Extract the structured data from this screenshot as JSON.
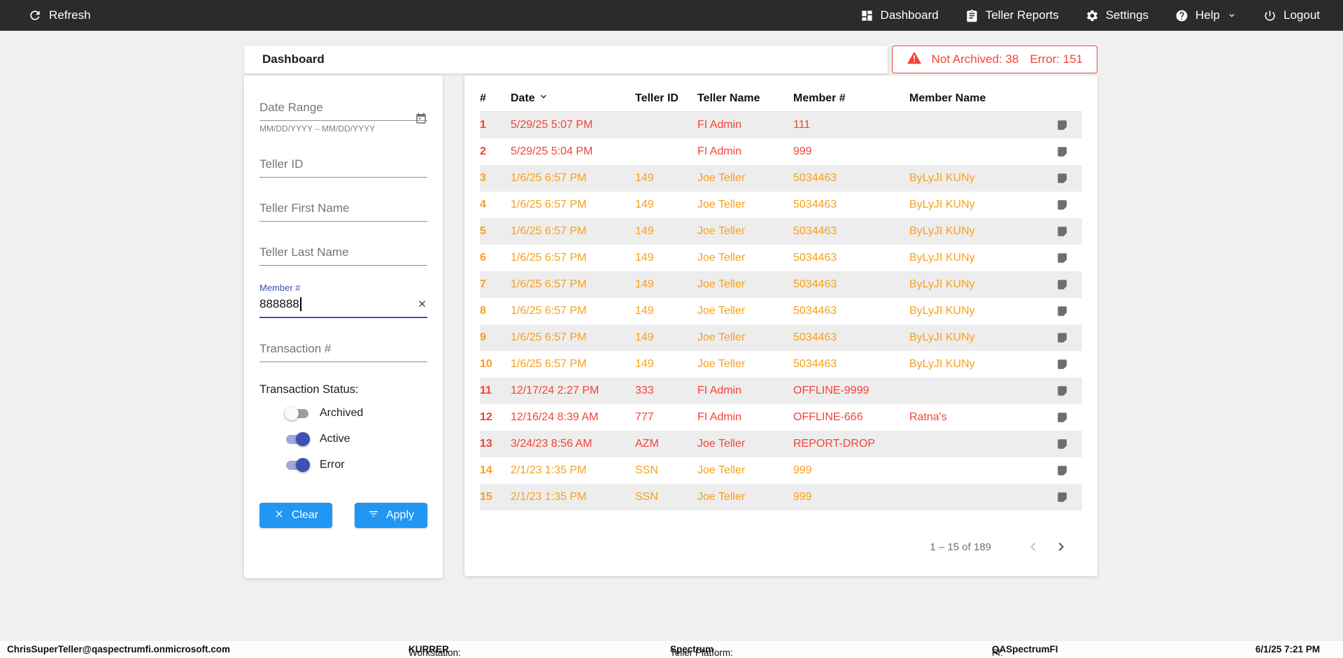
{
  "topbar": {
    "refresh_label": "Refresh",
    "nav": [
      {
        "label": "Dashboard"
      },
      {
        "label": "Teller Reports"
      },
      {
        "label": "Settings"
      },
      {
        "label": "Help"
      },
      {
        "label": "Logout"
      }
    ]
  },
  "page_header": {
    "title": "Dashboard",
    "alert": {
      "not_archived": "Not Archived: 38",
      "error": "Error: 151"
    }
  },
  "filters": {
    "date_range": {
      "placeholder": "Date Range",
      "hint": "MM/DD/YYYY – MM/DD/YYYY"
    },
    "teller_id": {
      "placeholder": "Teller ID"
    },
    "teller_first_name": {
      "placeholder": "Teller First Name"
    },
    "teller_last_name": {
      "placeholder": "Teller Last Name"
    },
    "member_number": {
      "label": "Member #",
      "value": "888888"
    },
    "transaction_number": {
      "placeholder": "Transaction #"
    },
    "transaction_status": {
      "label": "Transaction Status:",
      "options": [
        {
          "label": "Archived",
          "on": false
        },
        {
          "label": "Active",
          "on": true
        },
        {
          "label": "Error",
          "on": true
        }
      ]
    },
    "clear_label": "Clear",
    "apply_label": "Apply"
  },
  "table": {
    "columns": [
      "#",
      "Date",
      "Teller ID",
      "Teller Name",
      "Member #",
      "Member Name"
    ],
    "sorted_column": "Date",
    "sort_direction": "desc",
    "rows": [
      {
        "num": "1",
        "date": "5/29/25 5:07 PM",
        "teller_id": "",
        "teller_name": "FI Admin",
        "member_number": "111",
        "member_name": "",
        "status": "error"
      },
      {
        "num": "2",
        "date": "5/29/25 5:04 PM",
        "teller_id": "",
        "teller_name": "FI Admin",
        "member_number": "999",
        "member_name": "",
        "status": "error"
      },
      {
        "num": "3",
        "date": "1/6/25 6:57 PM",
        "teller_id": "149",
        "teller_name": "Joe Teller",
        "member_number": "5034463",
        "member_name": "ByLyJI KUNy",
        "status": "warning"
      },
      {
        "num": "4",
        "date": "1/6/25 6:57 PM",
        "teller_id": "149",
        "teller_name": "Joe Teller",
        "member_number": "5034463",
        "member_name": "ByLyJI KUNy",
        "status": "warning"
      },
      {
        "num": "5",
        "date": "1/6/25 6:57 PM",
        "teller_id": "149",
        "teller_name": "Joe Teller",
        "member_number": "5034463",
        "member_name": "ByLyJI KUNy",
        "status": "warning"
      },
      {
        "num": "6",
        "date": "1/6/25 6:57 PM",
        "teller_id": "149",
        "teller_name": "Joe Teller",
        "member_number": "5034463",
        "member_name": "ByLyJI KUNy",
        "status": "warning"
      },
      {
        "num": "7",
        "date": "1/6/25 6:57 PM",
        "teller_id": "149",
        "teller_name": "Joe Teller",
        "member_number": "5034463",
        "member_name": "ByLyJI KUNy",
        "status": "warning"
      },
      {
        "num": "8",
        "date": "1/6/25 6:57 PM",
        "teller_id": "149",
        "teller_name": "Joe Teller",
        "member_number": "5034463",
        "member_name": "ByLyJI KUNy",
        "status": "warning"
      },
      {
        "num": "9",
        "date": "1/6/25 6:57 PM",
        "teller_id": "149",
        "teller_name": "Joe Teller",
        "member_number": "5034463",
        "member_name": "ByLyJI KUNy",
        "status": "warning"
      },
      {
        "num": "10",
        "date": "1/6/25 6:57 PM",
        "teller_id": "149",
        "teller_name": "Joe Teller",
        "member_number": "5034463",
        "member_name": "ByLyJI KUNy",
        "status": "warning"
      },
      {
        "num": "11",
        "date": "12/17/24 2:27 PM",
        "teller_id": "333",
        "teller_name": "FI Admin",
        "member_number": "OFFLINE-9999",
        "member_name": "",
        "status": "error"
      },
      {
        "num": "12",
        "date": "12/16/24 8:39 AM",
        "teller_id": "777",
        "teller_name": "FI Admin",
        "member_number": "OFFLINE-666",
        "member_name": "Ratna's",
        "status": "error"
      },
      {
        "num": "13",
        "date": "3/24/23 8:56 AM",
        "teller_id": "AZM",
        "teller_name": "Joe Teller",
        "member_number": "REPORT-DROP",
        "member_name": "",
        "status": "error"
      },
      {
        "num": "14",
        "date": "2/1/23 1:35 PM",
        "teller_id": "SSN",
        "teller_name": "Joe Teller",
        "member_number": "999",
        "member_name": "",
        "status": "warning"
      },
      {
        "num": "15",
        "date": "2/1/23 1:35 PM",
        "teller_id": "SSN",
        "teller_name": "Joe Teller",
        "member_number": "999",
        "member_name": "",
        "status": "warning"
      }
    ]
  },
  "pagination": {
    "range": "1 – 15 of 189",
    "prev_enabled": false,
    "next_enabled": true
  },
  "footer": {
    "user": "ChrisSuperTeller@qaspectrumfi.onmicrosoft.com",
    "workstation_label": "Workstation:",
    "workstation": "KURRER",
    "platform_label": "Teller Platform:",
    "platform": "Spectrum",
    "fi_label": "FI:",
    "fi": "QASpectrumFI",
    "datetime": "6/1/25 7:21 PM"
  },
  "colors": {
    "error_red": "#f44336",
    "warning_orange": "#f9a01b",
    "accent_blue": "#2196f3",
    "toggle_indigo": "#3f51b5",
    "topbar_dark": "#2b2b2b"
  }
}
